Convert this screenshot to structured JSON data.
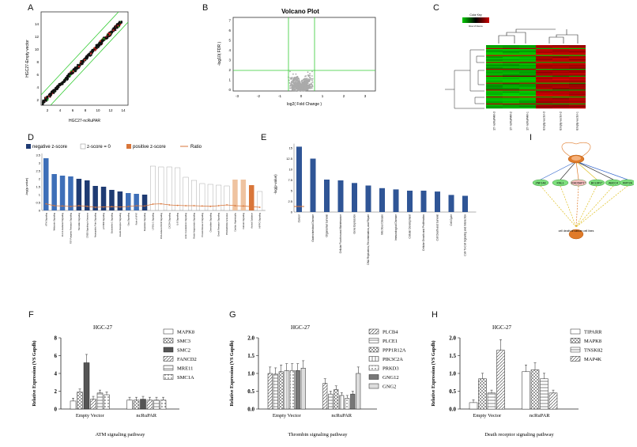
{
  "figure": {
    "panel_letters": [
      "A",
      "B",
      "C",
      "D",
      "E",
      "F",
      "G",
      "H",
      "I"
    ]
  },
  "panelA": {
    "xlabel": "HGC27-ncRuPAR",
    "ylabel": "HGC27-Empty vector",
    "xticks": [
      "2",
      "4",
      "6",
      "8",
      "10",
      "12",
      "14"
    ],
    "yticks": [
      "2",
      "4",
      "6",
      "8",
      "10",
      "12",
      "14"
    ]
  },
  "panelB": {
    "title": "Volcano Plot",
    "xlabel": "log2( Fold Change )",
    "ylabel": "-log10( FDR )",
    "xticks": [
      "-3",
      "-2",
      "-1",
      "0",
      "1",
      "2",
      "3"
    ],
    "yticks": [
      "0",
      "1",
      "2",
      "3",
      "4",
      "5",
      "6",
      "7"
    ]
  },
  "panelC": {
    "colorkey_title": "Color Key",
    "colorkey_sub": "Row Z-Score",
    "colors": [
      "#00cc00",
      "#000000",
      "#cc0000"
    ],
    "columns": [
      "HGC27-ncRuPAR-3",
      "HGC27-ncRuPAR-2",
      "HGC27-ncRuPAR-1",
      "HGC27-Empty vector-3",
      "HGC27-Empty vector-2",
      "HGC27-Empty vector-1"
    ]
  },
  "panelD": {
    "legend": [
      "negative z-score",
      "z-score = 0",
      "positive z-score",
      "Ratio"
    ],
    "ylabel": "-log(p-value)",
    "yticks": [
      "0",
      "0.5",
      "1",
      "1.5",
      "2",
      "2.5",
      "3",
      "3.5"
    ],
    "colors": {
      "dark": "#1f3b73",
      "mid": "#3e6fb8",
      "light": "#8fb0e0",
      "white": "#ffffff",
      "orange": "#d9763a",
      "lightorange": "#efc3a0"
    }
  },
  "panelE": {
    "ylabel": "-log(p-value)",
    "yticks": [
      "0",
      "2.5",
      "5",
      "7.5",
      "10",
      "12.5",
      "15"
    ],
    "categories": [
      "Cancer",
      "Gastrointestinal Disease",
      "Organismal Survival",
      "Cellular Function and Maintenance",
      "Gene Expression",
      "DNA Replication, Recombination, and Repair",
      "Infectious Disease",
      "Immunological Disease",
      "Cellular Development",
      "Cellular Growth and Proliferation",
      "Cell Death and Survival",
      "Cell Cycle",
      "Cell-To-Cell Signaling and Interaction"
    ],
    "bar_color": "#2f5596"
  },
  "panelI": {
    "nodes": [
      "ZNF148",
      "KNL1",
      "RAD5AP1*",
      "BCL6F1*",
      "ABCC4",
      "KMT2A"
    ],
    "target_label": "cell death of cancer cell lines"
  },
  "chart_data": [
    {
      "type": "bar",
      "panel": "F",
      "title": "HGC-27",
      "ylabel": "Relative Expression (VS Gapdh)",
      "xlabel": "ATM signaling pathway",
      "categories": [
        "Empty Vector",
        "ncRuPAR"
      ],
      "ylim": [
        0,
        8
      ],
      "yticks": [
        "0",
        "2",
        "4",
        "6",
        "8"
      ],
      "series": [
        {
          "name": "MAPK8",
          "values": [
            0.9,
            1.0
          ]
        },
        {
          "name": "SMC3",
          "values": [
            1.9,
            1.0
          ]
        },
        {
          "name": "SMC2",
          "values": [
            5.2,
            1.1
          ]
        },
        {
          "name": "FANCD2",
          "values": [
            1.1,
            1.0
          ]
        },
        {
          "name": "MRE11",
          "values": [
            1.8,
            1.0
          ]
        },
        {
          "name": "SMC1A",
          "values": [
            1.6,
            1.0
          ]
        }
      ]
    },
    {
      "type": "bar",
      "panel": "G",
      "title": "HGC-27",
      "ylabel": "Relative Expression (VS Gapdh)",
      "xlabel": "Thrombin signaling pathway",
      "categories": [
        "Empty Vector",
        "ncRuPAR"
      ],
      "ylim": [
        0,
        2.0
      ],
      "yticks": [
        "0.0",
        "0.5",
        "1.0",
        "1.5",
        "2.0"
      ],
      "series": [
        {
          "name": "PLCB4",
          "values": [
            1.0,
            0.72
          ]
        },
        {
          "name": "PLCE1",
          "values": [
            0.98,
            0.42
          ]
        },
        {
          "name": "PPP1R12A",
          "values": [
            1.05,
            0.55
          ]
        },
        {
          "name": "PIK3C2A",
          "values": [
            1.08,
            0.38
          ]
        },
        {
          "name": "PRKD3",
          "values": [
            1.08,
            0.3
          ]
        },
        {
          "name": "GNG12",
          "values": [
            1.08,
            0.42
          ]
        },
        {
          "name": "GNG2",
          "values": [
            1.15,
            1.0
          ]
        }
      ]
    },
    {
      "type": "bar",
      "panel": "H",
      "title": "HGC-27",
      "ylabel": "Relative Expression (VS Gapdh)",
      "xlabel": "Death receptor signaling pathway",
      "categories": [
        "Empty Vector",
        "ncRuPAR"
      ],
      "ylim": [
        0,
        2.0
      ],
      "yticks": [
        "0.0",
        "0.5",
        "1.0",
        "1.5",
        "2.0"
      ],
      "series": [
        {
          "name": "TIPARR",
          "values": [
            0.18,
            1.05
          ]
        },
        {
          "name": "MAPK8",
          "values": [
            0.85,
            1.1
          ]
        },
        {
          "name": "TNSK82",
          "values": [
            0.45,
            0.85
          ]
        },
        {
          "name": "MAP4K",
          "values": [
            1.65,
            0.45
          ]
        }
      ]
    }
  ]
}
